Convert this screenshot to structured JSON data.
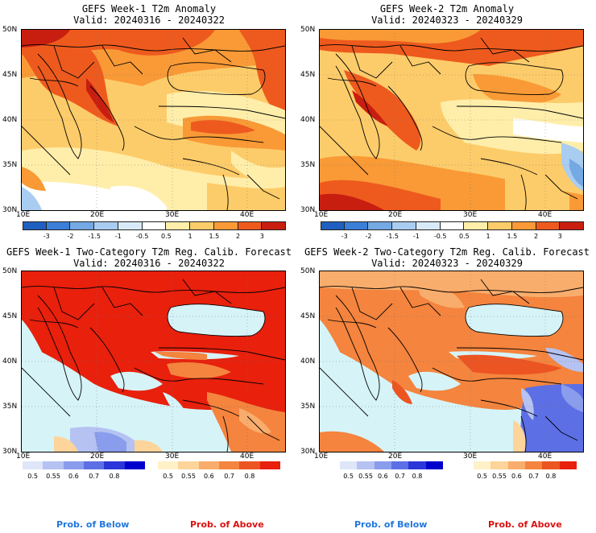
{
  "panels": [
    {
      "id": "p1",
      "title_line1": "GEFS Week-1 T2m Anomaly",
      "title_line2": "Valid: 20240316 - 20240322"
    },
    {
      "id": "p2",
      "title_line1": "GEFS Week-2 T2m Anomaly",
      "title_line2": "Valid: 20240323 - 20240329"
    },
    {
      "id": "p3",
      "title_line1": "GEFS Week-1 Two-Category T2m Reg. Calib. Forecast",
      "title_line2": "Valid: 20240316 - 20240322"
    },
    {
      "id": "p4",
      "title_line1": "GEFS Week-2 Two-Category T2m Reg. Calib. Forecast",
      "title_line2": "Valid: 20240323 - 20240329"
    }
  ],
  "axes": {
    "lat_labels": [
      "50N",
      "45N",
      "40N",
      "35N",
      "30N"
    ],
    "lon_labels": [
      "10E",
      "20E",
      "30E",
      "40E"
    ]
  },
  "anomaly_scale": {
    "ticks": [
      "-3",
      "-2",
      "-1.5",
      "-1",
      "-0.5",
      "0.5",
      "1",
      "1.5",
      "2",
      "3"
    ],
    "colors": [
      "#1f5fc0",
      "#3b7fd8",
      "#74a9e4",
      "#a9cdf0",
      "#d8eaf8",
      "#ffffff",
      "#ffeeaa",
      "#fdcc6a",
      "#f99a36",
      "#ee5a1e",
      "#c81e10"
    ]
  },
  "prob_below": {
    "ticks": [
      "0.5",
      "0.55",
      "0.6",
      "0.7",
      "0.8"
    ],
    "colors": [
      "#dfe6fa",
      "#b5c2f2",
      "#8a9cec",
      "#5c6fe4",
      "#2b36d8",
      "#0000cc"
    ],
    "label": "Prob. of Below",
    "label_color": "#2277dd"
  },
  "prob_above": {
    "ticks": [
      "0.5",
      "0.55",
      "0.6",
      "0.7",
      "0.8"
    ],
    "colors": [
      "#fff2c8",
      "#fdd49a",
      "#f9ad6c",
      "#f4843e",
      "#ec5422",
      "#e8200c"
    ],
    "label": "Prob. of Above",
    "label_color": "#dd1111"
  },
  "colors": {
    "sea_prob": "#d6f4f8",
    "land_line": "#000000"
  }
}
